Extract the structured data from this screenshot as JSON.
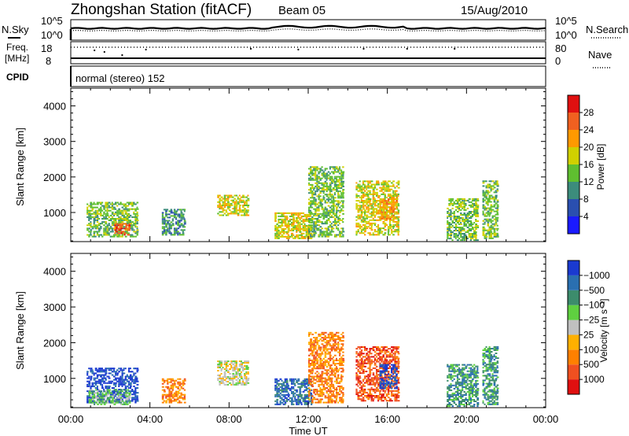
{
  "header": {
    "station": "Zhongshan Station (fitACF)",
    "beam": "Beam 05",
    "date": "15/Aug/2010"
  },
  "noise_panel": {
    "left_label": "N.Sky",
    "right_label": "N.Search",
    "left_ticks": [
      "10^5",
      "10^0"
    ],
    "right_ticks": [
      "10^5",
      "10^0"
    ]
  },
  "freq_panel": {
    "left_label": "Freq.",
    "left_unit": "[MHz]",
    "left_ticks": [
      "18",
      "8"
    ],
    "right_label": "Nave",
    "right_ticks": [
      "80",
      "0"
    ]
  },
  "cpid": {
    "label": "CPID",
    "value": "normal (stereo) 152"
  },
  "chart_data": [
    {
      "type": "heatmap",
      "name": "power",
      "ylabel": "Slant Range [km]",
      "ylim": [
        180,
        4500
      ],
      "yticks": [
        1000,
        2000,
        3000,
        4000
      ],
      "colorbar_label": "Power [dB]",
      "colorbar_ticks": [
        "4",
        "8",
        "12",
        "16",
        "20",
        "24",
        "28"
      ],
      "colors": [
        "#1a1aff",
        "#2a4fb0",
        "#3c8c7c",
        "#5fbf30",
        "#d0d000",
        "#ff9900",
        "#f06020",
        "#e01010"
      ],
      "echo_regions": [
        {
          "t0": 0.8,
          "t1": 3.4,
          "r0": 300,
          "r1": 1300,
          "level": 3
        },
        {
          "t0": 2.2,
          "t1": 3.0,
          "r0": 350,
          "r1": 700,
          "level": 6
        },
        {
          "t0": 4.6,
          "t1": 5.8,
          "r0": 350,
          "r1": 1100,
          "level": 2
        },
        {
          "t0": 7.4,
          "t1": 9.0,
          "r0": 900,
          "r1": 1500,
          "level": 4
        },
        {
          "t0": 10.3,
          "t1": 12.2,
          "r0": 250,
          "r1": 1000,
          "level": 4
        },
        {
          "t0": 12.0,
          "t1": 13.8,
          "r0": 300,
          "r1": 2300,
          "level": 3
        },
        {
          "t0": 14.4,
          "t1": 16.6,
          "r0": 350,
          "r1": 1900,
          "level": 4
        },
        {
          "t0": 15.6,
          "t1": 16.5,
          "r0": 800,
          "r1": 1400,
          "level": 5
        },
        {
          "t0": 19.0,
          "t1": 20.6,
          "r0": 200,
          "r1": 1400,
          "level": 3
        },
        {
          "t0": 20.8,
          "t1": 21.6,
          "r0": 250,
          "r1": 1900,
          "level": 3
        }
      ]
    },
    {
      "type": "heatmap",
      "name": "velocity",
      "ylabel": "Slant Range [km]",
      "ylim": [
        180,
        4500
      ],
      "yticks": [
        1000,
        2000,
        3000,
        4000
      ],
      "xlabel": "Time UT",
      "x_ticks": [
        "00:00",
        "04:00",
        "08:00",
        "12:00",
        "16:00",
        "20:00",
        "00:00"
      ],
      "colorbar_label": "Velocity [m s⁻¹]",
      "colorbar_ticks": [
        "1000",
        "500",
        "100",
        "25",
        "−25",
        "−100",
        "−500",
        "−1000"
      ],
      "colors": [
        "#1a3ad0",
        "#2a6fb0",
        "#3c8c6c",
        "#5fd040",
        "#c0c0c0",
        "#ffb000",
        "#ff8000",
        "#f05020",
        "#e01010"
      ],
      "echo_regions": [
        {
          "t0": 0.8,
          "t1": 3.4,
          "r0": 300,
          "r1": 1300,
          "level": 0
        },
        {
          "t0": 0.9,
          "t1": 3.0,
          "r0": 250,
          "r1": 700,
          "level": 3
        },
        {
          "t0": 4.6,
          "t1": 5.8,
          "r0": 300,
          "r1": 1000,
          "level": 6
        },
        {
          "t0": 7.4,
          "t1": 9.0,
          "r0": 800,
          "r1": 1500,
          "level": 4
        },
        {
          "t0": 10.3,
          "t1": 12.2,
          "r0": 250,
          "r1": 1000,
          "level": 1
        },
        {
          "t0": 12.0,
          "t1": 13.8,
          "r0": 300,
          "r1": 2300,
          "level": 6
        },
        {
          "t0": 14.4,
          "t1": 16.6,
          "r0": 350,
          "r1": 1900,
          "level": 7
        },
        {
          "t0": 15.6,
          "t1": 16.5,
          "r0": 700,
          "r1": 1400,
          "level": 0
        },
        {
          "t0": 19.0,
          "t1": 20.6,
          "r0": 200,
          "r1": 1400,
          "level": 2
        },
        {
          "t0": 20.8,
          "t1": 21.6,
          "r0": 250,
          "r1": 1900,
          "level": 2
        }
      ]
    }
  ]
}
